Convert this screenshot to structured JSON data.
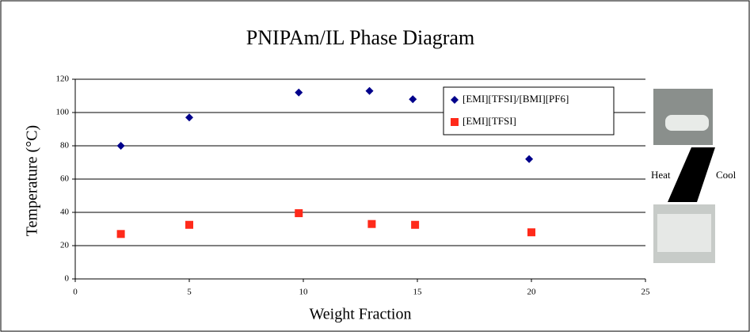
{
  "chart_data": {
    "type": "scatter",
    "title": "PNIPAm/IL Phase Diagram",
    "x_label": "Weight Fraction",
    "y_label": "Temperature (°C)",
    "xlim": [
      0,
      25
    ],
    "xticks": [
      0,
      5,
      10,
      15,
      20,
      25
    ],
    "ylim": [
      0,
      120
    ],
    "yticks": [
      0,
      20,
      40,
      60,
      80,
      100,
      120
    ],
    "grid": true,
    "legend": "upper right",
    "series": [
      {
        "name": "[EMI][TFSI]/[BMI][PF6]",
        "color": "#00008b",
        "marker": "diamond",
        "x": [
          2,
          5,
          9.8,
          12.9,
          14.8,
          19.9
        ],
        "values": [
          80,
          97,
          112,
          113,
          108,
          72
        ]
      },
      {
        "name": "[EMI][TFSI]",
        "color": "#ff2a1a",
        "marker": "square",
        "x": [
          2,
          5,
          9.8,
          13,
          14.9,
          20
        ],
        "values": [
          27,
          32.5,
          39.5,
          33,
          32.5,
          28
        ]
      }
    ],
    "annotations": [
      "Heat",
      "Cool"
    ]
  }
}
